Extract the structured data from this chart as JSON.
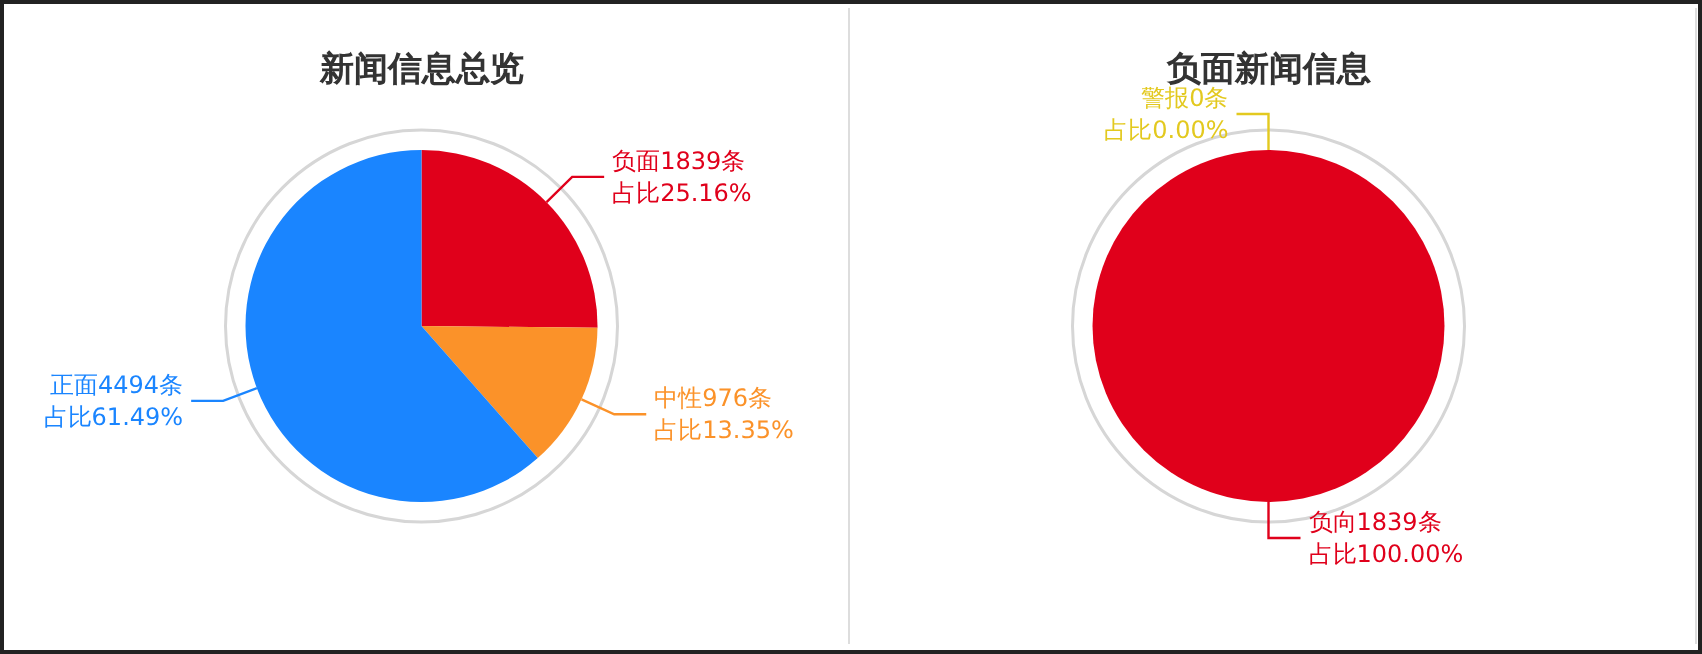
{
  "chart_data": [
    {
      "type": "pie",
      "title": "新闻信息总览",
      "categories": [
        "负面",
        "中性",
        "正面"
      ],
      "values": [
        1839,
        976,
        4494
      ],
      "colors": [
        "#e0001b",
        "#fb9229",
        "#1a85ff"
      ],
      "value_labels": [
        "1839条",
        "976条",
        "4494条"
      ],
      "annotations": [
        "占比25.16%",
        "占比13.35%",
        "占比61.49%"
      ]
    },
    {
      "type": "pie",
      "title": "负面新闻信息",
      "categories": [
        "警报",
        "负向"
      ],
      "values": [
        0,
        1839
      ],
      "colors": [
        "#e3c91f",
        "#e0001b"
      ],
      "value_labels": [
        "0条",
        "1839条"
      ],
      "annotations": [
        "占比0.00%",
        "占比100.00%"
      ]
    }
  ]
}
